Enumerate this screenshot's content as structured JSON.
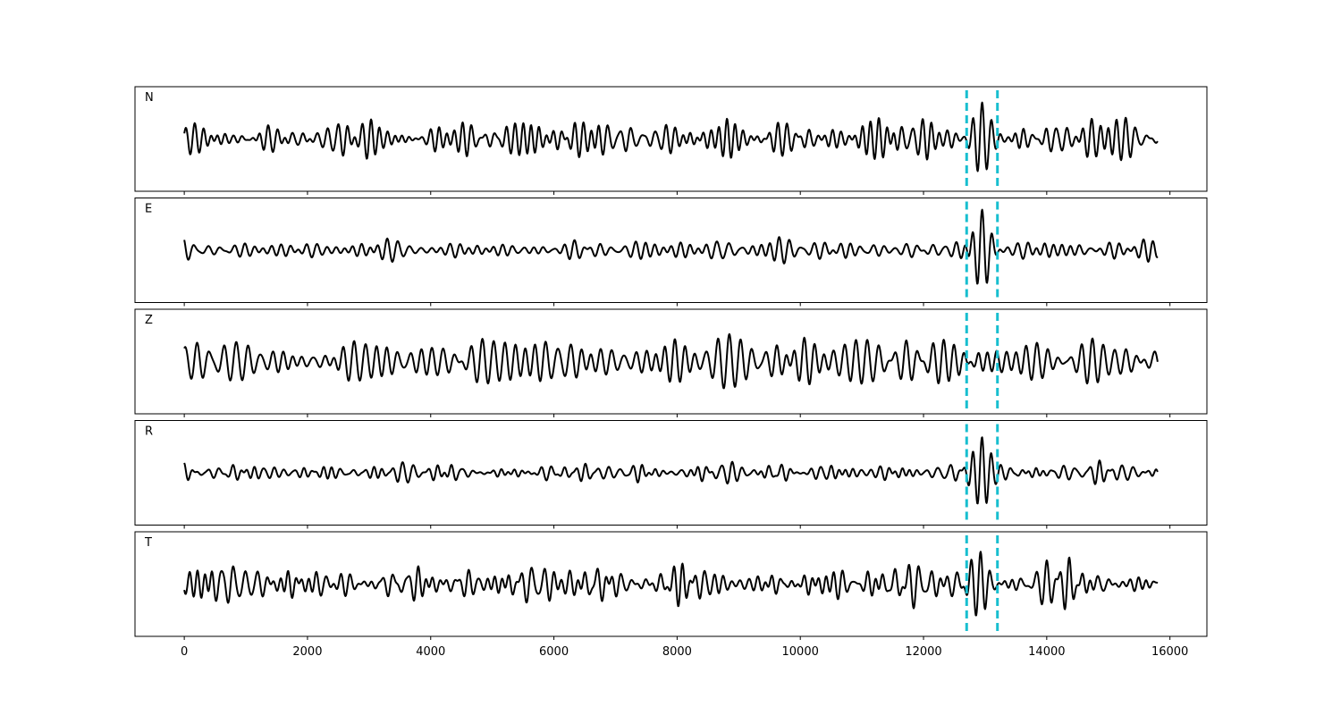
{
  "chart_data": {
    "type": "line",
    "title": "",
    "xlabel": "",
    "ylabel": "",
    "xlim": [
      -800,
      16600
    ],
    "ylim": [
      -1,
      1
    ],
    "x_ticks": [
      0,
      2000,
      4000,
      6000,
      8000,
      10000,
      12000,
      14000,
      16000
    ],
    "x_tick_labels": [
      "0",
      "2000",
      "4000",
      "6000",
      "8000",
      "10000",
      "12000",
      "14000",
      "16000"
    ],
    "shared_x": true,
    "y_axis_shown": false,
    "grid": false,
    "legend": "none",
    "colors": {
      "trace": "#000000",
      "pick": "#17becf"
    },
    "picks": [
      12700,
      13200
    ],
    "n_samples": 15800,
    "panels": [
      {
        "name": "N",
        "trace_color": "#000000",
        "noise_amplitude": 0.48,
        "event": {
          "center": 12950,
          "amplitude": 0.92,
          "period": 150,
          "width": 130
        }
      },
      {
        "name": "E",
        "trace_color": "#000000",
        "noise_amplitude": 0.3,
        "event": {
          "center": 12950,
          "amplitude": 0.95,
          "period": 160,
          "width": 120
        }
      },
      {
        "name": "Z",
        "trace_color": "#000000",
        "noise_amplitude": 0.62,
        "event": {
          "center": 12900,
          "amplitude": 0.25,
          "period": 150,
          "width": 150
        }
      },
      {
        "name": "R",
        "trace_color": "#000000",
        "noise_amplitude": 0.28,
        "event": {
          "center": 12950,
          "amplitude": 0.92,
          "period": 150,
          "width": 130
        }
      },
      {
        "name": "T",
        "trace_color": "#000000",
        "noise_amplitude": 0.6,
        "event": {
          "center": 12930,
          "amplitude": 0.85,
          "period": 150,
          "width": 140
        }
      }
    ]
  }
}
